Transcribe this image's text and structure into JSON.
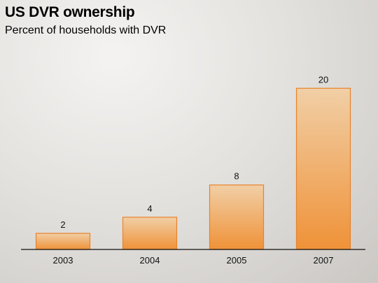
{
  "chart_data": {
    "type": "bar",
    "title": "US DVR ownership",
    "subtitle": "Percent of households with DVR",
    "categories": [
      "2003",
      "2004",
      "2005",
      "2007"
    ],
    "values": [
      2,
      4,
      8,
      20
    ],
    "xlabel": "",
    "ylabel": "",
    "ylim": [
      0,
      21.5
    ],
    "grid": false,
    "legend": "none",
    "colors": {
      "bar_top": "#f1cfa6",
      "bar_bottom": "#ef9238",
      "bar_stroke": "#e8822a",
      "axis": "#111111"
    }
  }
}
